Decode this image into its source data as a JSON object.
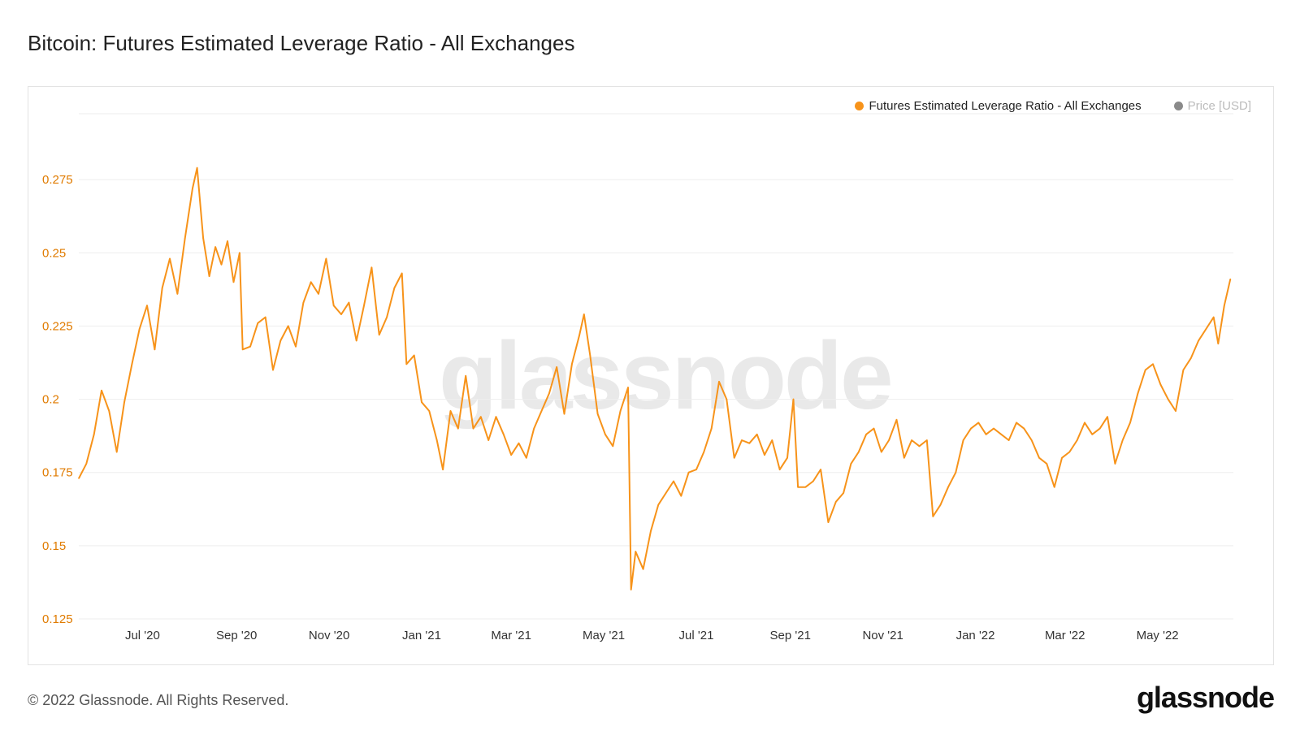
{
  "header": {
    "title": "Bitcoin: Futures Estimated Leverage Ratio - All Exchanges"
  },
  "legend": [
    {
      "label": "Futures Estimated Leverage Ratio - All Exchanges",
      "color": "#f7931a",
      "active": true
    },
    {
      "label": "Price [USD]",
      "color": "#8a8a8a",
      "active": false
    }
  ],
  "watermark": "glassnode",
  "footer": {
    "copyright": "© 2022 Glassnode. All Rights Reserved.",
    "brand": "glassnode"
  },
  "colors": {
    "series": "#f7931a",
    "axis_text": "#e07b00",
    "grid": "#eeeeee"
  },
  "chart_data": {
    "type": "line",
    "title": "Bitcoin: Futures Estimated Leverage Ratio - All Exchanges",
    "xlabel": "",
    "ylabel": "",
    "x_range": [
      "2020-05-20",
      "2022-06-20"
    ],
    "ylim": [
      0.125,
      0.2975
    ],
    "yticks": [
      0.125,
      0.15,
      0.175,
      0.2,
      0.225,
      0.25,
      0.275
    ],
    "ytick_labels": [
      "0.125",
      "0.15",
      "0.175",
      "0.2",
      "0.225",
      "0.25",
      "0.275"
    ],
    "xticks": [
      "2020-07-01",
      "2020-09-01",
      "2020-11-01",
      "2021-01-01",
      "2021-03-01",
      "2021-05-01",
      "2021-07-01",
      "2021-09-01",
      "2021-11-01",
      "2022-01-01",
      "2022-03-01",
      "2022-05-01"
    ],
    "xtick_labels": [
      "Jul '20",
      "Sep '20",
      "Nov '20",
      "Jan '21",
      "Mar '21",
      "May '21",
      "Jul '21",
      "Sep '21",
      "Nov '21",
      "Jan '22",
      "Mar '22",
      "May '22"
    ],
    "series": [
      {
        "name": "Futures Estimated Leverage Ratio - All Exchanges",
        "points": [
          [
            "2020-05-20",
            0.173
          ],
          [
            "2020-05-25",
            0.178
          ],
          [
            "2020-05-30",
            0.188
          ],
          [
            "2020-06-04",
            0.203
          ],
          [
            "2020-06-09",
            0.196
          ],
          [
            "2020-06-14",
            0.182
          ],
          [
            "2020-06-19",
            0.199
          ],
          [
            "2020-06-24",
            0.212
          ],
          [
            "2020-06-29",
            0.224
          ],
          [
            "2020-07-04",
            0.232
          ],
          [
            "2020-07-09",
            0.217
          ],
          [
            "2020-07-14",
            0.238
          ],
          [
            "2020-07-19",
            0.248
          ],
          [
            "2020-07-24",
            0.236
          ],
          [
            "2020-07-29",
            0.255
          ],
          [
            "2020-08-03",
            0.272
          ],
          [
            "2020-08-06",
            0.279
          ],
          [
            "2020-08-10",
            0.255
          ],
          [
            "2020-08-14",
            0.242
          ],
          [
            "2020-08-18",
            0.252
          ],
          [
            "2020-08-22",
            0.246
          ],
          [
            "2020-08-26",
            0.254
          ],
          [
            "2020-08-30",
            0.24
          ],
          [
            "2020-09-03",
            0.25
          ],
          [
            "2020-09-05",
            0.217
          ],
          [
            "2020-09-10",
            0.218
          ],
          [
            "2020-09-15",
            0.226
          ],
          [
            "2020-09-20",
            0.228
          ],
          [
            "2020-09-25",
            0.21
          ],
          [
            "2020-09-30",
            0.22
          ],
          [
            "2020-10-05",
            0.225
          ],
          [
            "2020-10-10",
            0.218
          ],
          [
            "2020-10-15",
            0.233
          ],
          [
            "2020-10-20",
            0.24
          ],
          [
            "2020-10-25",
            0.236
          ],
          [
            "2020-10-30",
            0.248
          ],
          [
            "2020-11-04",
            0.232
          ],
          [
            "2020-11-09",
            0.229
          ],
          [
            "2020-11-14",
            0.233
          ],
          [
            "2020-11-19",
            0.22
          ],
          [
            "2020-11-24",
            0.232
          ],
          [
            "2020-11-29",
            0.245
          ],
          [
            "2020-12-04",
            0.222
          ],
          [
            "2020-12-09",
            0.228
          ],
          [
            "2020-12-14",
            0.238
          ],
          [
            "2020-12-19",
            0.243
          ],
          [
            "2020-12-22",
            0.212
          ],
          [
            "2020-12-27",
            0.215
          ],
          [
            "2021-01-01",
            0.199
          ],
          [
            "2021-01-06",
            0.196
          ],
          [
            "2021-01-11",
            0.186
          ],
          [
            "2021-01-15",
            0.176
          ],
          [
            "2021-01-20",
            0.196
          ],
          [
            "2021-01-25",
            0.19
          ],
          [
            "2021-01-30",
            0.208
          ],
          [
            "2021-02-04",
            0.19
          ],
          [
            "2021-02-09",
            0.194
          ],
          [
            "2021-02-14",
            0.186
          ],
          [
            "2021-02-19",
            0.194
          ],
          [
            "2021-02-24",
            0.188
          ],
          [
            "2021-03-01",
            0.181
          ],
          [
            "2021-03-06",
            0.185
          ],
          [
            "2021-03-11",
            0.18
          ],
          [
            "2021-03-16",
            0.19
          ],
          [
            "2021-03-21",
            0.196
          ],
          [
            "2021-03-26",
            0.202
          ],
          [
            "2021-03-31",
            0.211
          ],
          [
            "2021-04-05",
            0.195
          ],
          [
            "2021-04-10",
            0.212
          ],
          [
            "2021-04-15",
            0.222
          ],
          [
            "2021-04-18",
            0.229
          ],
          [
            "2021-04-22",
            0.215
          ],
          [
            "2021-04-27",
            0.195
          ],
          [
            "2021-05-02",
            0.188
          ],
          [
            "2021-05-07",
            0.184
          ],
          [
            "2021-05-12",
            0.196
          ],
          [
            "2021-05-17",
            0.204
          ],
          [
            "2021-05-19",
            0.135
          ],
          [
            "2021-05-22",
            0.148
          ],
          [
            "2021-05-27",
            0.142
          ],
          [
            "2021-06-01",
            0.155
          ],
          [
            "2021-06-06",
            0.164
          ],
          [
            "2021-06-11",
            0.168
          ],
          [
            "2021-06-16",
            0.172
          ],
          [
            "2021-06-21",
            0.167
          ],
          [
            "2021-06-26",
            0.175
          ],
          [
            "2021-07-01",
            0.176
          ],
          [
            "2021-07-06",
            0.182
          ],
          [
            "2021-07-11",
            0.19
          ],
          [
            "2021-07-16",
            0.206
          ],
          [
            "2021-07-21",
            0.2
          ],
          [
            "2021-07-26",
            0.18
          ],
          [
            "2021-07-31",
            0.186
          ],
          [
            "2021-08-05",
            0.185
          ],
          [
            "2021-08-10",
            0.188
          ],
          [
            "2021-08-15",
            0.181
          ],
          [
            "2021-08-20",
            0.186
          ],
          [
            "2021-08-25",
            0.176
          ],
          [
            "2021-08-30",
            0.18
          ],
          [
            "2021-09-03",
            0.2
          ],
          [
            "2021-09-06",
            0.17
          ],
          [
            "2021-09-11",
            0.17
          ],
          [
            "2021-09-16",
            0.172
          ],
          [
            "2021-09-21",
            0.176
          ],
          [
            "2021-09-26",
            0.158
          ],
          [
            "2021-10-01",
            0.165
          ],
          [
            "2021-10-06",
            0.168
          ],
          [
            "2021-10-11",
            0.178
          ],
          [
            "2021-10-16",
            0.182
          ],
          [
            "2021-10-21",
            0.188
          ],
          [
            "2021-10-26",
            0.19
          ],
          [
            "2021-10-31",
            0.182
          ],
          [
            "2021-11-05",
            0.186
          ],
          [
            "2021-11-10",
            0.193
          ],
          [
            "2021-11-15",
            0.18
          ],
          [
            "2021-11-20",
            0.186
          ],
          [
            "2021-11-25",
            0.184
          ],
          [
            "2021-11-30",
            0.186
          ],
          [
            "2021-12-04",
            0.16
          ],
          [
            "2021-12-09",
            0.164
          ],
          [
            "2021-12-14",
            0.17
          ],
          [
            "2021-12-19",
            0.175
          ],
          [
            "2021-12-24",
            0.186
          ],
          [
            "2021-12-29",
            0.19
          ],
          [
            "2022-01-03",
            0.192
          ],
          [
            "2022-01-08",
            0.188
          ],
          [
            "2022-01-13",
            0.19
          ],
          [
            "2022-01-18",
            0.188
          ],
          [
            "2022-01-23",
            0.186
          ],
          [
            "2022-01-28",
            0.192
          ],
          [
            "2022-02-02",
            0.19
          ],
          [
            "2022-02-07",
            0.186
          ],
          [
            "2022-02-12",
            0.18
          ],
          [
            "2022-02-17",
            0.178
          ],
          [
            "2022-02-22",
            0.17
          ],
          [
            "2022-02-27",
            0.18
          ],
          [
            "2022-03-04",
            0.182
          ],
          [
            "2022-03-09",
            0.186
          ],
          [
            "2022-03-14",
            0.192
          ],
          [
            "2022-03-19",
            0.188
          ],
          [
            "2022-03-24",
            0.19
          ],
          [
            "2022-03-29",
            0.194
          ],
          [
            "2022-04-03",
            0.178
          ],
          [
            "2022-04-08",
            0.186
          ],
          [
            "2022-04-13",
            0.192
          ],
          [
            "2022-04-18",
            0.202
          ],
          [
            "2022-04-23",
            0.21
          ],
          [
            "2022-04-28",
            0.212
          ],
          [
            "2022-05-03",
            0.205
          ],
          [
            "2022-05-08",
            0.2
          ],
          [
            "2022-05-13",
            0.196
          ],
          [
            "2022-05-18",
            0.21
          ],
          [
            "2022-05-23",
            0.214
          ],
          [
            "2022-05-28",
            0.22
          ],
          [
            "2022-06-02",
            0.224
          ],
          [
            "2022-06-07",
            0.228
          ],
          [
            "2022-06-10",
            0.219
          ],
          [
            "2022-06-14",
            0.232
          ],
          [
            "2022-06-18",
            0.241
          ]
        ]
      }
    ]
  }
}
